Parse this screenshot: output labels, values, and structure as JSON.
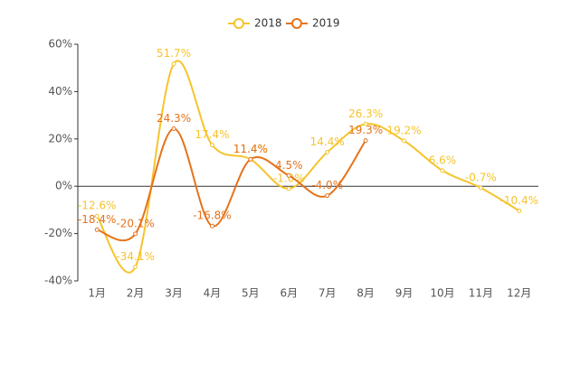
{
  "chart_data": {
    "type": "line",
    "categories": [
      "1月",
      "2月",
      "3月",
      "4月",
      "5月",
      "6月",
      "7月",
      "8月",
      "9月",
      "10月",
      "11月",
      "12月"
    ],
    "series": [
      {
        "name": "2018",
        "color": "#f5c42c",
        "values": [
          -12.6,
          -34.1,
          51.7,
          17.4,
          11.4,
          -1.0,
          14.4,
          26.3,
          19.2,
          6.6,
          -0.7,
          -10.4
        ],
        "value_labels": [
          "-12.6%",
          "-34.1%",
          "51.7%",
          "17.4%",
          "11.4%",
          "-1.0%",
          "14.4%",
          "26.3%",
          "19.2%",
          "6.6%",
          "-0.7%",
          "-10.4%"
        ]
      },
      {
        "name": "2019",
        "color": "#e5731c",
        "values": [
          -18.4,
          -20.1,
          24.3,
          -16.8,
          11.4,
          4.5,
          -4.0,
          19.3,
          null,
          null,
          null,
          null
        ],
        "value_labels": [
          "-18.4%",
          "-20.1%",
          "24.3%",
          "-16.8%",
          "11.4%",
          "4.5%",
          "-4.0%",
          "19.3%",
          null,
          null,
          null,
          null
        ]
      }
    ],
    "ylim": [
      -40,
      60
    ],
    "yticks": [
      {
        "value": -40,
        "label": "-40%"
      },
      {
        "value": -20,
        "label": "-20%"
      },
      {
        "value": 0,
        "label": "0%"
      },
      {
        "value": 20,
        "label": "20%"
      },
      {
        "value": 40,
        "label": "40%"
      },
      {
        "value": 60,
        "label": "60%"
      }
    ],
    "legend": "top"
  }
}
